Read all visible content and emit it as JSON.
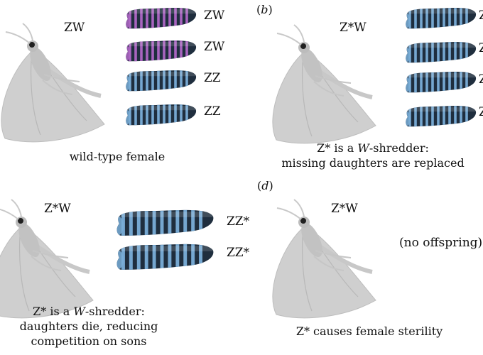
{
  "colors": {
    "female_larva": "#b067c6",
    "male_larva": "#7aaed8",
    "larva_dark": "#1f2e3e",
    "moth": "#d4d4d4"
  },
  "panel_a": {
    "parent_label": "ZW",
    "offspring": [
      "ZW",
      "ZW",
      "ZZ",
      "ZZ"
    ],
    "caption": "wild-type female"
  },
  "panel_b": {
    "letter": "b",
    "parent_label": "Z*W",
    "offspring": [
      "Z",
      "Z",
      "Z",
      "Z"
    ],
    "caption_prefix": "Z* is a ",
    "caption_italic": "W",
    "caption_suffix": "-shredder:",
    "caption_line2": "missing daughters are replaced"
  },
  "panel_c": {
    "parent_label": "Z*W",
    "offspring": [
      "ZZ*",
      "ZZ*"
    ],
    "caption_prefix": "Z* is a ",
    "caption_italic": "W",
    "caption_suffix": "-shredder:",
    "caption_line2": "daughters die, reducing",
    "caption_line3": "competition on sons"
  },
  "panel_d": {
    "letter": "d",
    "parent_label": "Z*W",
    "no_offspring": "(no offspring)",
    "caption": "Z* causes female sterility"
  }
}
